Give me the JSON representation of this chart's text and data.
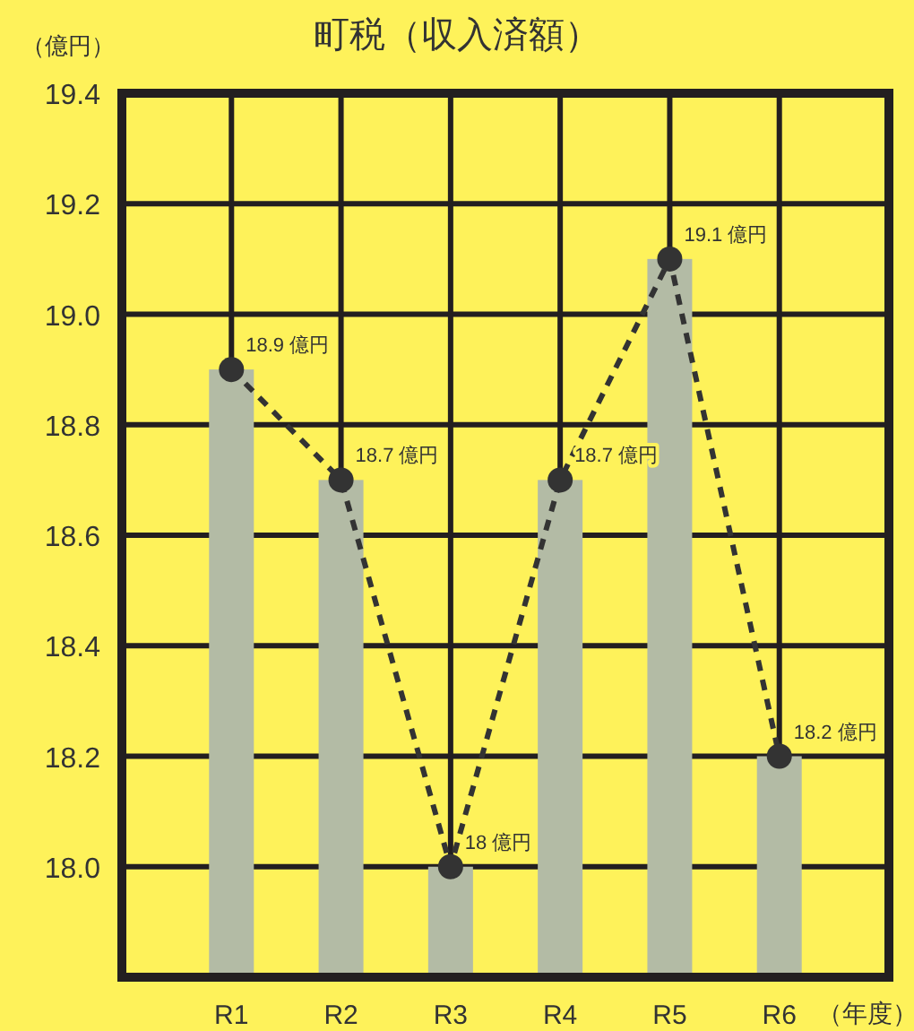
{
  "chart_data": {
    "type": "bar",
    "title": "町税（収入済額）",
    "ylabel": "（億円）",
    "xlabel": "（年度）",
    "categories": [
      "R1",
      "R2",
      "R3",
      "R4",
      "R5",
      "R6"
    ],
    "series": [
      {
        "color": "#b3bba5",
        "values": [
          18.9,
          18.7,
          18.0,
          18.7,
          19.1,
          18.2
        ]
      },
      {
        "type": "line",
        "color": "#333333",
        "values": [
          18.9,
          18.7,
          18.0,
          18.7,
          19.1,
          18.2
        ],
        "value_labels": [
          "18.9 億円",
          "18.7 億円",
          "18 億円",
          "18.7 億円",
          "19.1 億円",
          "18.2 億円"
        ],
        "line_style": "dashed",
        "marker": "circle"
      }
    ],
    "ylim": [
      17.8,
      19.4
    ],
    "yticks": [
      {
        "value": 18,
        "label": "18.0"
      },
      {
        "value": 18.2,
        "label": "18.2"
      },
      {
        "value": 18.4,
        "label": "18.4"
      },
      {
        "value": 18.6,
        "label": "18.6"
      },
      {
        "value": 18.8,
        "label": "18.8"
      },
      {
        "value": 19,
        "label": "19.0"
      },
      {
        "value": 19.2,
        "label": "19.2"
      },
      {
        "value": 19.4,
        "label": "19.4"
      }
    ],
    "grid": true
  }
}
